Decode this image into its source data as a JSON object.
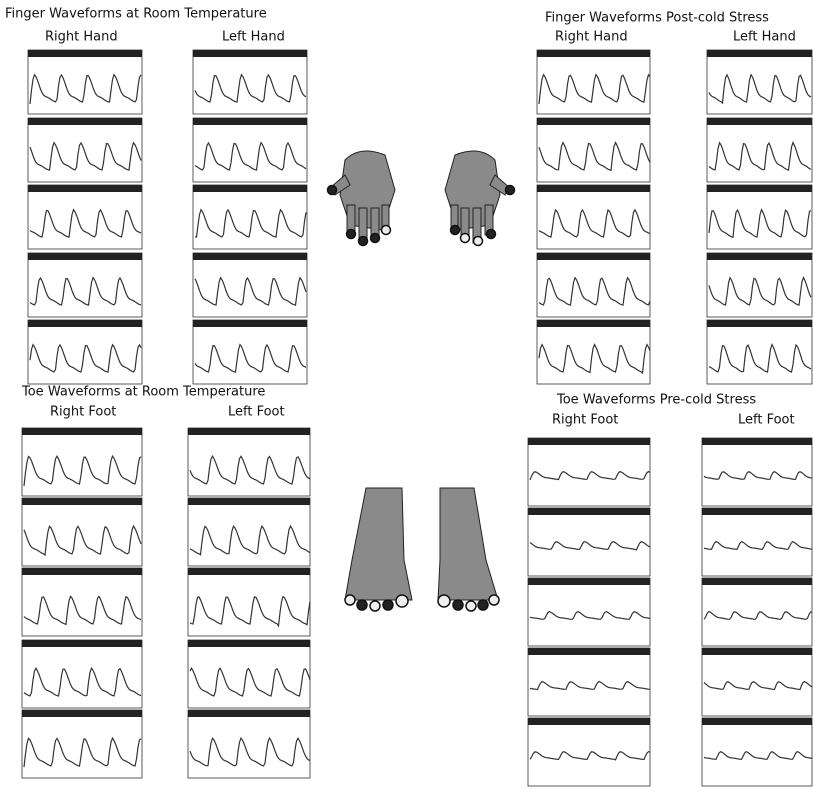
{
  "panels": [
    {
      "title": "Finger Waveforms  at Room Temperature",
      "columns": [
        "Right Hand",
        "Left Hand"
      ]
    },
    {
      "title": "Finger Waveforms  Post-cold Stress",
      "columns": [
        "Right Hand",
        "Left Hand"
      ]
    },
    {
      "title": "Toe Waveforms  at Room Temperature",
      "columns": [
        "Right Foot",
        "Left Foot"
      ]
    },
    {
      "title": "Toe Waveforms  Pre-cold Stress",
      "columns": [
        "Right Foot",
        "Left Foot"
      ]
    }
  ]
}
